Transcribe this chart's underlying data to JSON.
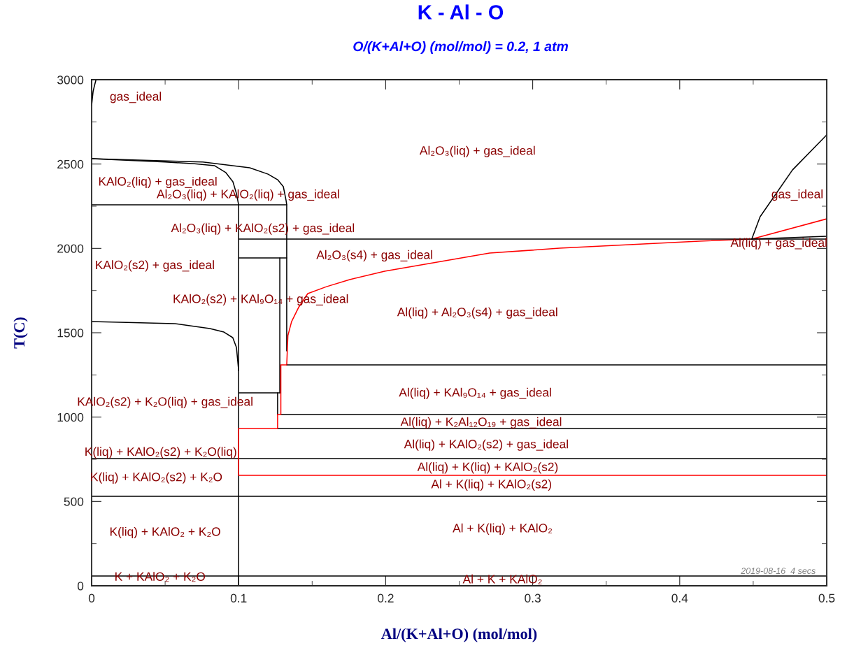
{
  "chart_data": {
    "type": "line",
    "title": "K - Al - O",
    "subtitle": "O/(K+Al+O) (mol/mol) = 0.2, 1 atm",
    "xlabel": "Al/(K+Al+O) (mol/mol)",
    "ylabel": "T(C)",
    "xlim": [
      0,
      0.5
    ],
    "xticks": [
      0,
      0.1,
      0.2,
      0.3,
      0.4,
      0.5
    ],
    "ylim": [
      0,
      3000
    ],
    "yticks": [
      0,
      500,
      1000,
      1500,
      2000,
      2500,
      3000
    ],
    "grid": false,
    "legend": false,
    "marker": "none",
    "line_style": "solid",
    "series": [
      {
        "color": "#000000",
        "x": [
          0,
          0.001,
          0.002,
          0.003
        ],
        "values": [
          2847,
          2930,
          2967,
          3000
        ]
      },
      {
        "color": "#000000",
        "x": [
          0,
          0.0756,
          0.1075,
          0.12,
          0.1265,
          0.1304,
          0.1323,
          0.1327,
          0.1327
        ],
        "values": [
          2532,
          2512,
          2478,
          2440,
          2407,
          2366,
          2283,
          2258,
          1392
        ]
      },
      {
        "color": "#000000",
        "x": [
          0,
          0.05,
          0.07,
          0.0837,
          0.0913,
          0.0961,
          0.0985,
          0.1,
          0.1
        ],
        "values": [
          2532,
          2512,
          2502,
          2490,
          2449,
          2395,
          2325,
          2258,
          0
        ]
      },
      {
        "color": "#000000",
        "x": [
          0,
          0.0566,
          0.0804,
          0.09,
          0.096,
          0.0985,
          0.1
        ],
        "values": [
          1566,
          1554,
          1525,
          1504,
          1471,
          1413,
          1276
        ]
      },
      {
        "color": "#ff0000",
        "x": [
          0.1327,
          0.1335,
          0.136,
          0.1407,
          0.147,
          0.1597,
          0.1755,
          0.1993,
          0.2707,
          0.3183,
          0.3658,
          0.4134,
          0.449,
          0.5
        ],
        "values": [
          1309,
          1483,
          1566,
          1649,
          1732,
          1773,
          1815,
          1865,
          1972,
          2001,
          2022,
          2043,
          2055,
          2175
        ]
      },
      {
        "color": "#000000",
        "x": [
          0.449,
          0.4547,
          0.4767,
          0.5
        ],
        "values": [
          2055,
          2188,
          2465,
          2673
        ]
      },
      {
        "color": "#000000",
        "x": [
          0.449,
          0.5
        ],
        "values": [
          2055,
          2072
        ]
      },
      {
        "color": "#000000",
        "x": [
          0,
          0.1327
        ],
        "values": [
          2258,
          2258
        ]
      },
      {
        "color": "#000000",
        "x": [
          0.1,
          0.5
        ],
        "values": [
          2055,
          2055
        ]
      },
      {
        "color": "#000000",
        "x": [
          0.1,
          0.1327
        ],
        "values": [
          1943,
          1943
        ]
      },
      {
        "color": "#000000",
        "x": [
          0.128,
          0.128
        ],
        "values": [
          1943,
          1144
        ]
      },
      {
        "color": "#000000",
        "x": [
          0.1,
          0.128
        ],
        "values": [
          1144,
          1144
        ]
      },
      {
        "color": "#000000",
        "x": [
          0.1265,
          0.1265
        ],
        "values": [
          1144,
          1015
        ]
      },
      {
        "color": "#000000",
        "x": [
          0.1327,
          0.5
        ],
        "values": [
          1309,
          1309
        ]
      },
      {
        "color": "#000000",
        "x": [
          0.1287,
          0.5
        ],
        "values": [
          1015,
          1015
        ]
      },
      {
        "color": "#000000",
        "x": [
          0.1265,
          0.5
        ],
        "values": [
          932,
          932
        ]
      },
      {
        "color": "#000000",
        "x": [
          0,
          0.5
        ],
        "values": [
          754,
          754
        ]
      },
      {
        "color": "#000000",
        "x": [
          0,
          0.5
        ],
        "values": [
          530,
          530
        ]
      },
      {
        "color": "#000000",
        "x": [
          0,
          0.5
        ],
        "values": [
          58,
          58
        ]
      },
      {
        "color": "#ff0000",
        "x": [
          0.1327,
          0.1287,
          0.1287,
          0.1265,
          0.1265,
          0.1,
          0.1,
          0.5
        ],
        "values": [
          1309,
          1309,
          1015,
          1015,
          932,
          932,
          655,
          655
        ]
      }
    ],
    "annotations": [
      "gas_ideal",
      "Al₂O₃(liq) + gas_ideal",
      "KAlO₂(liq) + gas_ideal",
      "Al₂O₃(liq) + KAlO₂(liq) + gas_ideal",
      "gas_ideal",
      "Al₂O₃(liq) + KAlO₂(s2) + gas_ideal",
      "Al(liq) + gas_ideal",
      "Al₂O₃(s4) + gas_ideal",
      "KAlO₂(s2) + gas_ideal",
      "KAlO₂(s2) + KAl₉O₁₄ + gas_ideal",
      "Al(liq) + Al₂O₃(s4) + gas_ideal",
      "Al(liq) + KAl₉O₁₄ + gas_ideal",
      "KAlO₂(s2) + K₂O(liq) + gas_ideal",
      "Al(liq) + K₂Al₁₂O₁₉ + gas_ideal",
      "Al(liq) + KAlO₂(s2) + gas_ideal",
      "K(liq) + KAlO₂(s2) + K₂O(liq)",
      "Al(liq) + K(liq) + KAlO₂(s2)",
      "K(liq) + KAlO₂(s2) + K₂O",
      "Al + K(liq) + KAlO₂(s2)",
      "K(liq) + KAlO₂ + K₂O",
      "Al + K(liq) + KAlO₂",
      "K + KAlO₂ + K₂O",
      "Al + K + KAlO₂",
      "2019-08-16  4 secs"
    ]
  }
}
